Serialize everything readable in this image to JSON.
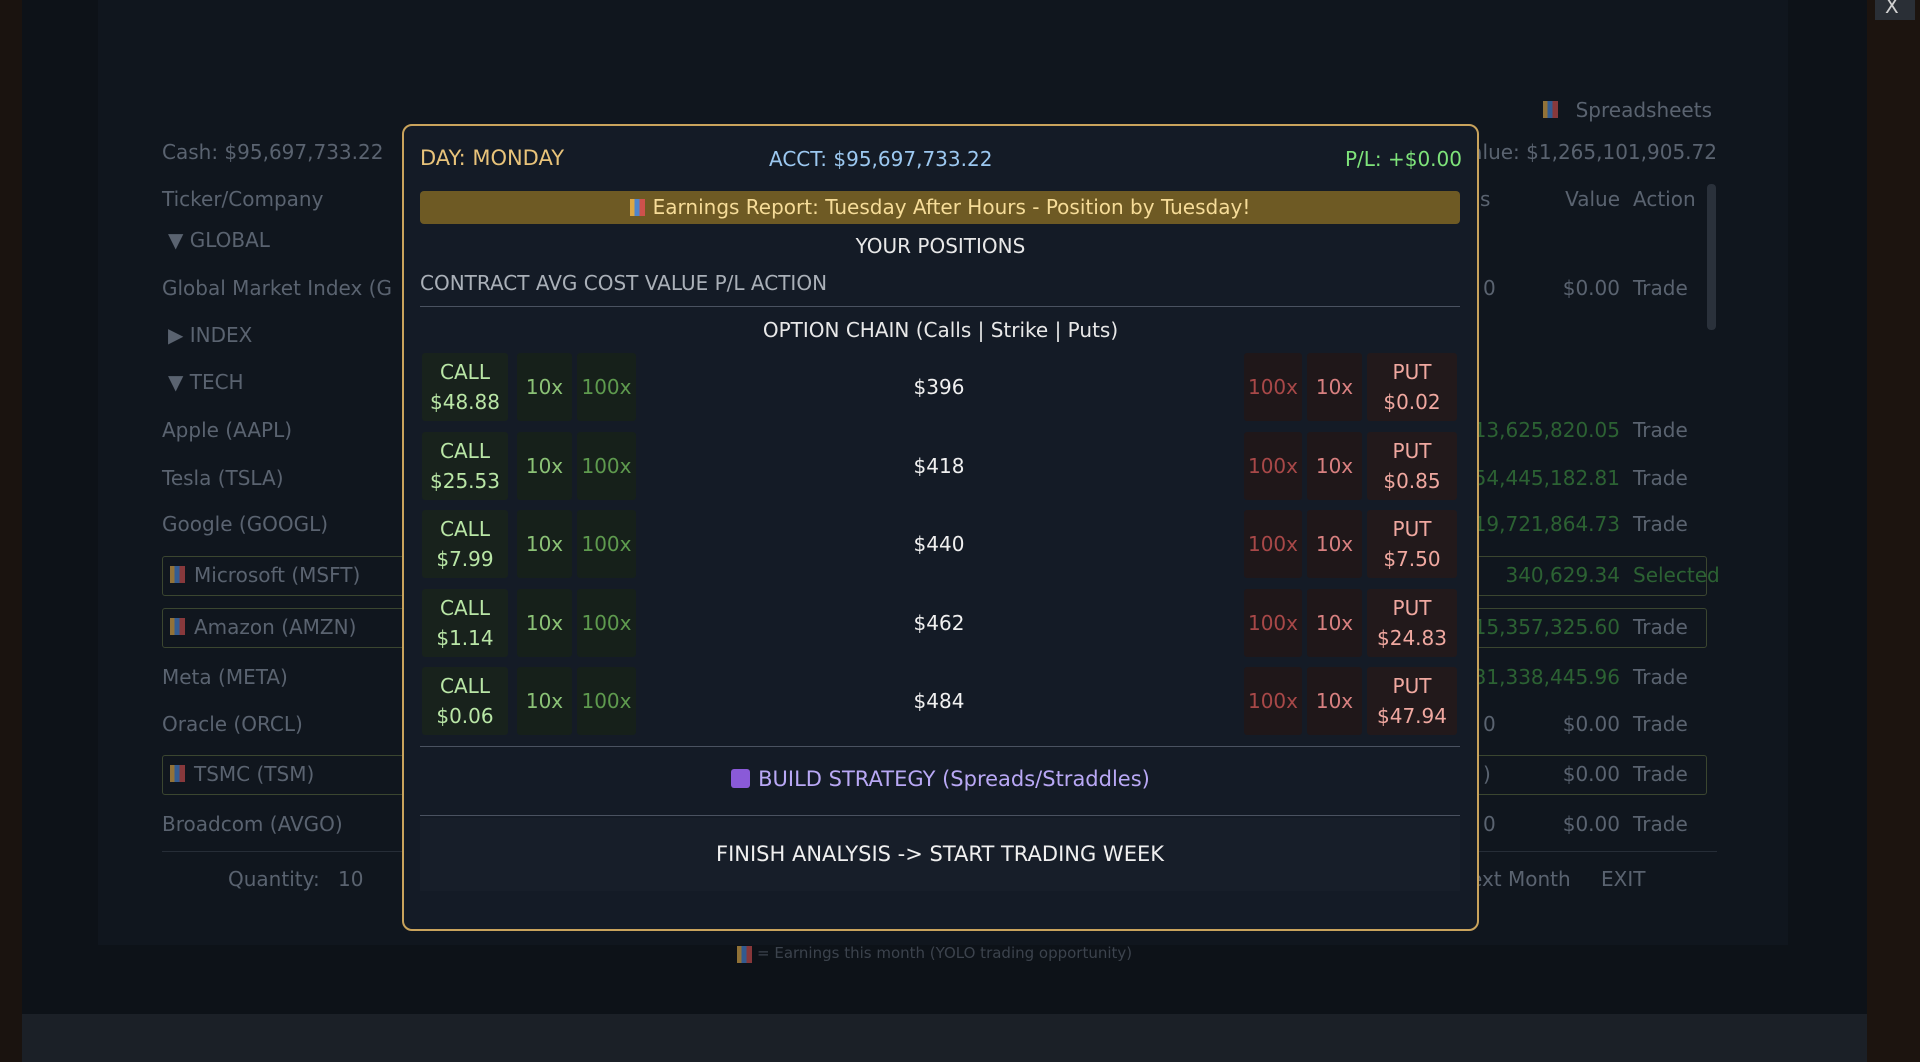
{
  "close_button": "X",
  "background": {
    "spreadsheets": "Spreadsheets",
    "cash": "Cash: $95,697,733.22",
    "portfolio_value": "alue: $1,265,101,905.72",
    "columns": {
      "ticker": "Ticker/Company",
      "shares": "s",
      "value": "Value",
      "action": "Action"
    },
    "rows": [
      {
        "label": "▼ GLOBAL",
        "group": true
      },
      {
        "label": "Global Market Index (G",
        "shares": "0",
        "value": "$0.00",
        "action": "Trade"
      },
      {
        "label": "▶ INDEX",
        "group": true
      },
      {
        "label": "▼ TECH",
        "group": true
      },
      {
        "label": "Apple (AAPL)",
        "value": "13,625,820.05",
        "action": "Trade",
        "gain": true
      },
      {
        "label": "Tesla (TSLA)",
        "value": "54,445,182.81",
        "action": "Trade",
        "gain": true
      },
      {
        "label": "Google (GOOGL)",
        "value": "19,721,864.73",
        "action": "Trade",
        "gain": true
      },
      {
        "label": "Microsoft (MSFT)",
        "value": "340,629.34",
        "action": "Selected",
        "gain": true,
        "boxed": true,
        "earnings": true,
        "selected": true
      },
      {
        "label": "Amazon (AMZN)",
        "value": "15,357,325.60",
        "action": "Trade",
        "gain": true,
        "boxed": true,
        "earnings": true
      },
      {
        "label": "Meta (META)",
        "value": "31,338,445.96",
        "action": "Trade",
        "gain": true
      },
      {
        "label": "Oracle (ORCL)",
        "shares": "0",
        "value": "$0.00",
        "action": "Trade"
      },
      {
        "label": "TSMC (TSM)",
        "shares": ")",
        "value": "$0.00",
        "action": "Trade",
        "boxed": true,
        "earnings": true
      },
      {
        "label": "Broadcom (AVGO)",
        "shares": "0",
        "value": "$0.00",
        "action": "Trade"
      }
    ],
    "quantity_label": "Quantity:",
    "quantity": "10",
    "next_month": "ext Month",
    "exit": "EXIT",
    "footer": "= Earnings this month (YOLO trading opportunity)"
  },
  "modal": {
    "day": "DAY: MONDAY",
    "account": "ACCT: $95,697,733.22",
    "pl": "P/L: +$0.00",
    "banner": "Earnings Report: Tuesday After Hours - Position by Tuesday!",
    "positions_title": "YOUR POSITIONS",
    "positions_header": "CONTRACT AVG COST VALUE P/L ACTION",
    "chain_title": "OPTION CHAIN (Calls | Strike | Puts)",
    "chain": [
      {
        "call": "CALL",
        "call_price": "$48.88",
        "call_10": "10x",
        "call_100": "100x",
        "strike": "$396",
        "put_100": "100x",
        "put_10": "10x",
        "put": "PUT",
        "put_price": "$0.02"
      },
      {
        "call": "CALL",
        "call_price": "$25.53",
        "call_10": "10x",
        "call_100": "100x",
        "strike": "$418",
        "put_100": "100x",
        "put_10": "10x",
        "put": "PUT",
        "put_price": "$0.85"
      },
      {
        "call": "CALL",
        "call_price": "$7.99",
        "call_10": "10x",
        "call_100": "100x",
        "strike": "$440",
        "put_100": "100x",
        "put_10": "10x",
        "put": "PUT",
        "put_price": "$7.50"
      },
      {
        "call": "CALL",
        "call_price": "$1.14",
        "call_10": "10x",
        "call_100": "100x",
        "strike": "$462",
        "put_100": "100x",
        "put_10": "10x",
        "put": "PUT",
        "put_price": "$24.83"
      },
      {
        "call": "CALL",
        "call_price": "$0.06",
        "call_10": "10x",
        "call_100": "100x",
        "strike": "$484",
        "put_100": "100x",
        "put_10": "10x",
        "put": "PUT",
        "put_price": "$47.94"
      }
    ],
    "strategy": "BUILD STRATEGY (Spreads/Straddles)",
    "finish": "FINISH ANALYSIS -> START TRADING WEEK"
  }
}
